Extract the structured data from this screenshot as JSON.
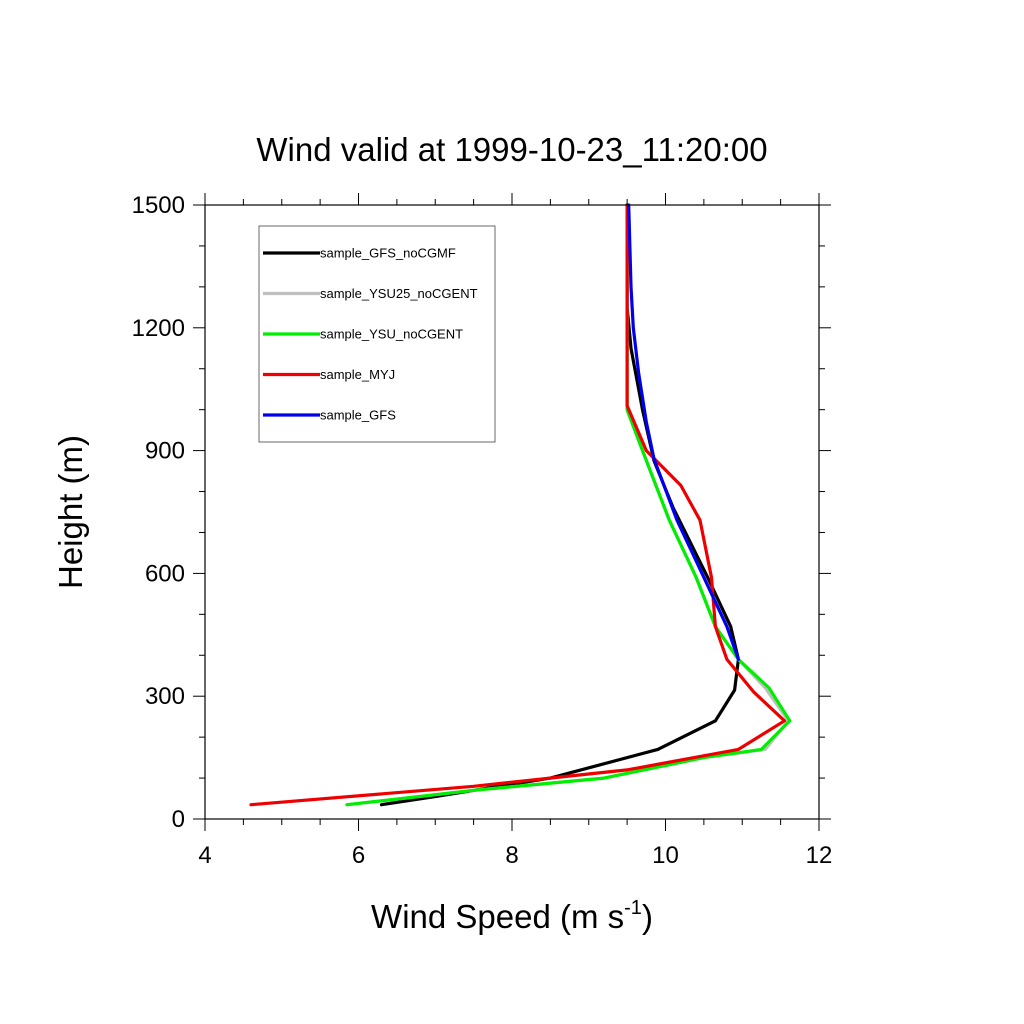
{
  "chart_data": {
    "type": "line",
    "title": "Wind valid at 1999-10-23_11:20:00",
    "xlabel": "Wind Speed (m s",
    "xlabel_sup": "-1",
    "xlabel_close": ")",
    "ylabel": "Height (m)",
    "xlim": [
      4,
      12
    ],
    "ylim": [
      0,
      1500
    ],
    "xticks": [
      4,
      6,
      8,
      10,
      12
    ],
    "yticks": [
      0,
      300,
      600,
      900,
      1200,
      1500
    ],
    "legend_position": "top-left",
    "series": [
      {
        "name": "sample_GFS_noCGMF",
        "color": "#000000",
        "points": [
          [
            6.3,
            35
          ],
          [
            7.0,
            55
          ],
          [
            8.5,
            100
          ],
          [
            9.9,
            170
          ],
          [
            10.65,
            240
          ],
          [
            10.9,
            315
          ],
          [
            10.95,
            390
          ],
          [
            10.85,
            470
          ],
          [
            10.55,
            590
          ],
          [
            10.1,
            760
          ],
          [
            9.85,
            875
          ],
          [
            9.7,
            1000
          ],
          [
            9.55,
            1150
          ],
          [
            9.5,
            1250
          ],
          [
            9.5,
            1500
          ]
        ]
      },
      {
        "name": "sample_YSU25_noCGENT",
        "color": "#bfbfbf",
        "points": [
          [
            5.85,
            35
          ],
          [
            7.5,
            70
          ],
          [
            9.2,
            100
          ],
          [
            10.5,
            150
          ],
          [
            11.3,
            170
          ],
          [
            11.6,
            240
          ],
          [
            11.3,
            320
          ],
          [
            10.95,
            390
          ],
          [
            10.65,
            470
          ],
          [
            10.4,
            590
          ],
          [
            10.05,
            730
          ],
          [
            9.7,
            900
          ],
          [
            9.5,
            1000
          ],
          [
            9.5,
            1150
          ],
          [
            9.5,
            1500
          ]
        ]
      },
      {
        "name": "sample_YSU_noCGENT",
        "color": "#00ee00",
        "points": [
          [
            5.85,
            35
          ],
          [
            7.5,
            70
          ],
          [
            9.2,
            100
          ],
          [
            10.5,
            150
          ],
          [
            11.25,
            170
          ],
          [
            11.62,
            240
          ],
          [
            11.35,
            320
          ],
          [
            10.95,
            390
          ],
          [
            10.65,
            470
          ],
          [
            10.4,
            590
          ],
          [
            10.05,
            730
          ],
          [
            9.7,
            900
          ],
          [
            9.5,
            1000
          ],
          [
            9.5,
            1150
          ],
          [
            9.5,
            1500
          ]
        ]
      },
      {
        "name": "sample_MYJ",
        "color": "#ee0000",
        "points": [
          [
            4.6,
            35
          ],
          [
            7.5,
            80
          ],
          [
            9.5,
            120
          ],
          [
            10.95,
            170
          ],
          [
            11.55,
            240
          ],
          [
            11.15,
            310
          ],
          [
            10.8,
            390
          ],
          [
            10.65,
            470
          ],
          [
            10.6,
            590
          ],
          [
            10.45,
            730
          ],
          [
            10.2,
            815
          ],
          [
            9.75,
            900
          ],
          [
            9.5,
            1010
          ],
          [
            9.5,
            1200
          ],
          [
            9.5,
            1500
          ]
        ]
      },
      {
        "name": "sample_GFS",
        "color": "#0000ee",
        "points": [
          [
            10.95,
            390
          ],
          [
            10.8,
            470
          ],
          [
            10.5,
            590
          ],
          [
            10.15,
            730
          ],
          [
            9.85,
            880
          ],
          [
            9.75,
            970
          ],
          [
            9.65,
            1090
          ],
          [
            9.58,
            1200
          ],
          [
            9.55,
            1300
          ],
          [
            9.52,
            1500
          ]
        ]
      }
    ]
  }
}
